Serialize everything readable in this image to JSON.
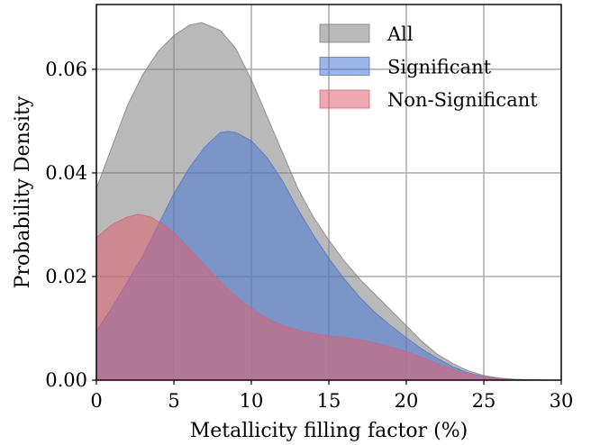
{
  "chart_data": {
    "type": "area",
    "xlabel": "Metallicity filling factor (%)",
    "ylabel": "Probability Density",
    "xlim": [
      0,
      30
    ],
    "ylim": [
      0,
      0.0725
    ],
    "xticks": [
      0,
      5,
      10,
      15,
      20,
      25,
      30
    ],
    "yticks": [
      0.0,
      0.02,
      0.04,
      0.06
    ],
    "ytick_labels": [
      "0.00",
      "0.02",
      "0.04",
      "0.06"
    ],
    "grid": true,
    "legend_position": "top-right",
    "series": [
      {
        "name": "All",
        "color": "#808080",
        "x": [
          0,
          1,
          2,
          3,
          4,
          5,
          6,
          6.8,
          8,
          9,
          10,
          11,
          12,
          13,
          14,
          15,
          16,
          17,
          18,
          19,
          20,
          21,
          22,
          23,
          24,
          25,
          26,
          27,
          28,
          29,
          30
        ],
        "values": [
          0.037,
          0.045,
          0.053,
          0.059,
          0.0635,
          0.0665,
          0.0685,
          0.069,
          0.0675,
          0.064,
          0.058,
          0.051,
          0.044,
          0.037,
          0.0315,
          0.027,
          0.023,
          0.0195,
          0.0165,
          0.0135,
          0.0105,
          0.0075,
          0.005,
          0.0032,
          0.0018,
          0.0009,
          0.0004,
          0.00018,
          7e-05,
          2e-05,
          0.0
        ]
      },
      {
        "name": "Significant",
        "color": "#4a78d6",
        "x": [
          0,
          1,
          2,
          3,
          4,
          5,
          6,
          7,
          8,
          8.5,
          9,
          10,
          11,
          12,
          13,
          14,
          15,
          16,
          17,
          18,
          19,
          20,
          21,
          22,
          23,
          24,
          25,
          26,
          27,
          28,
          29,
          30
        ],
        "values": [
          0.0095,
          0.014,
          0.019,
          0.024,
          0.03,
          0.036,
          0.041,
          0.045,
          0.0478,
          0.048,
          0.0478,
          0.0462,
          0.043,
          0.0385,
          0.033,
          0.028,
          0.0235,
          0.0195,
          0.016,
          0.013,
          0.0105,
          0.0082,
          0.006,
          0.0042,
          0.0026,
          0.0014,
          0.0007,
          0.0003,
          0.00012,
          4e-05,
          1e-05,
          0.0
        ]
      },
      {
        "name": "Non-Significant",
        "color": "#e06070",
        "x": [
          0,
          1,
          2,
          2.7,
          3.5,
          4.5,
          5.5,
          6.5,
          7.5,
          8.5,
          9.5,
          10.5,
          11.5,
          12.5,
          13.5,
          14.5,
          15.5,
          16.5,
          17.5,
          18.5,
          19.5,
          20.5,
          21.5,
          22.5,
          23.5,
          24.5,
          25.5,
          26.5,
          27.5,
          28.5,
          30
        ],
        "values": [
          0.0275,
          0.03,
          0.0315,
          0.032,
          0.0315,
          0.0298,
          0.027,
          0.0238,
          0.0205,
          0.0175,
          0.015,
          0.0128,
          0.0112,
          0.0101,
          0.0093,
          0.0088,
          0.0084,
          0.008,
          0.0075,
          0.0068,
          0.006,
          0.005,
          0.0038,
          0.0026,
          0.0016,
          0.0009,
          0.0004,
          0.00015,
          5e-05,
          1e-05,
          0.0
        ]
      }
    ]
  }
}
